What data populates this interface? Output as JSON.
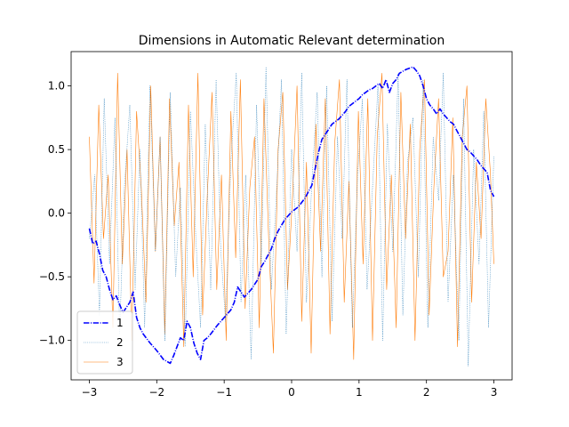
{
  "chart_data": {
    "type": "line",
    "title": "Dimensions in Automatic Relevant determination",
    "xlabel": "",
    "ylabel": "",
    "xlim": [
      -3.27,
      3.27
    ],
    "ylim": [
      -1.31,
      1.27
    ],
    "xticks": [
      -3,
      -2,
      -1,
      0,
      1,
      2,
      3
    ],
    "xtick_labels": [
      "−3",
      "−2",
      "−1",
      "0",
      "1",
      "2",
      "3"
    ],
    "yticks": [
      -1.0,
      -0.5,
      0.0,
      0.5,
      1.0
    ],
    "ytick_labels": [
      "−1.0",
      "−0.5",
      "0.0",
      "0.5",
      "1.0"
    ],
    "grid": false,
    "legend_position": "lower-left",
    "series": [
      {
        "name": "1",
        "color": "#0000ff",
        "style": "dashdot",
        "x": [
          -3.0,
          -2.95,
          -2.9,
          -2.85,
          -2.8,
          -2.75,
          -2.7,
          -2.65,
          -2.6,
          -2.55,
          -2.5,
          -2.45,
          -2.4,
          -2.35,
          -2.3,
          -2.25,
          -2.2,
          -2.1,
          -2.0,
          -1.9,
          -1.8,
          -1.75,
          -1.7,
          -1.65,
          -1.6,
          -1.55,
          -1.5,
          -1.45,
          -1.4,
          -1.35,
          -1.3,
          -1.25,
          -1.2,
          -1.1,
          -1.0,
          -0.9,
          -0.85,
          -0.8,
          -0.75,
          -0.7,
          -0.6,
          -0.5,
          -0.45,
          -0.4,
          -0.35,
          -0.3,
          -0.25,
          -0.2,
          -0.1,
          0.0,
          0.1,
          0.2,
          0.25,
          0.3,
          0.35,
          0.4,
          0.45,
          0.5,
          0.6,
          0.7,
          0.8,
          0.85,
          0.9,
          0.95,
          1.0,
          1.05,
          1.1,
          1.15,
          1.2,
          1.25,
          1.3,
          1.35,
          1.4,
          1.45,
          1.5,
          1.55,
          1.6,
          1.7,
          1.8,
          1.85,
          1.9,
          1.95,
          2.0,
          2.05,
          2.1,
          2.15,
          2.2,
          2.25,
          2.3,
          2.35,
          2.4,
          2.45,
          2.5,
          2.55,
          2.6,
          2.65,
          2.7,
          2.75,
          2.8,
          2.85,
          2.9,
          2.95,
          3.0
        ],
        "y": [
          -0.12,
          -0.24,
          -0.22,
          -0.32,
          -0.45,
          -0.5,
          -0.6,
          -0.68,
          -0.65,
          -0.72,
          -0.78,
          -0.74,
          -0.7,
          -0.62,
          -0.82,
          -0.9,
          -0.95,
          -1.02,
          -1.08,
          -1.15,
          -1.18,
          -1.12,
          -1.05,
          -0.98,
          -1.0,
          -0.85,
          -0.9,
          -1.02,
          -1.1,
          -1.15,
          -1.0,
          -0.98,
          -0.95,
          -0.88,
          -0.82,
          -0.76,
          -0.7,
          -0.58,
          -0.62,
          -0.66,
          -0.6,
          -0.52,
          -0.42,
          -0.38,
          -0.33,
          -0.28,
          -0.2,
          -0.14,
          -0.05,
          0.01,
          0.05,
          0.12,
          0.17,
          0.22,
          0.35,
          0.48,
          0.58,
          0.62,
          0.7,
          0.74,
          0.8,
          0.84,
          0.86,
          0.88,
          0.9,
          0.93,
          0.95,
          0.97,
          0.98,
          1.0,
          1.02,
          0.98,
          1.05,
          0.95,
          1.02,
          1.05,
          1.1,
          1.13,
          1.15,
          1.12,
          1.08,
          1.0,
          0.9,
          0.85,
          0.82,
          0.78,
          0.82,
          0.78,
          0.75,
          0.72,
          0.7,
          0.65,
          0.6,
          0.55,
          0.5,
          0.48,
          0.45,
          0.42,
          0.38,
          0.35,
          0.32,
          0.18,
          0.13
        ]
      },
      {
        "name": "2",
        "color": "#1f77b4",
        "style": "dotted",
        "x": [
          -3.0,
          -2.92,
          -2.85,
          -2.78,
          -2.7,
          -2.62,
          -2.55,
          -2.48,
          -2.4,
          -2.32,
          -2.25,
          -2.18,
          -2.1,
          -2.02,
          -1.95,
          -1.88,
          -1.8,
          -1.72,
          -1.65,
          -1.58,
          -1.5,
          -1.42,
          -1.35,
          -1.28,
          -1.2,
          -1.12,
          -1.05,
          -0.98,
          -0.9,
          -0.82,
          -0.75,
          -0.68,
          -0.6,
          -0.52,
          -0.45,
          -0.38,
          -0.3,
          -0.22,
          -0.15,
          -0.08,
          0.0,
          0.08,
          0.15,
          0.22,
          0.3,
          0.38,
          0.45,
          0.52,
          0.6,
          0.68,
          0.75,
          0.82,
          0.9,
          0.98,
          1.05,
          1.12,
          1.2,
          1.28,
          1.35,
          1.42,
          1.5,
          1.58,
          1.65,
          1.72,
          1.8,
          1.88,
          1.95,
          2.02,
          2.1,
          2.18,
          2.25,
          2.32,
          2.4,
          2.48,
          2.55,
          2.62,
          2.7,
          2.78,
          2.85,
          2.92,
          3.0
        ],
        "y": [
          -0.2,
          0.3,
          -0.8,
          0.9,
          -0.4,
          0.75,
          -0.95,
          0.2,
          0.85,
          -0.6,
          0.5,
          -0.9,
          1.0,
          -0.3,
          0.6,
          -1.0,
          0.95,
          -0.5,
          0.2,
          -1.05,
          0.8,
          -0.2,
          -0.9,
          0.7,
          -0.6,
          1.05,
          -0.3,
          -0.85,
          0.4,
          1.1,
          -0.7,
          0.3,
          -1.15,
          0.85,
          -0.4,
          1.15,
          -0.6,
          0.2,
          1.05,
          -0.95,
          0.5,
          -0.3,
          1.1,
          -0.7,
          0.25,
          0.95,
          -0.5,
          1.0,
          -0.85,
          0.6,
          -0.2,
          1.05,
          -0.9,
          0.3,
          0.9,
          -0.6,
          0.2,
          1.0,
          -1.0,
          0.7,
          -0.3,
          1.1,
          -0.8,
          0.4,
          0.75,
          -0.5,
          1.05,
          -0.9,
          0.6,
          0.1,
          1.1,
          -0.7,
          0.3,
          -1.0,
          0.9,
          -1.2,
          0.5,
          -0.4,
          0.8,
          -0.9,
          0.45
        ]
      },
      {
        "name": "3",
        "color": "#ff7f0e",
        "style": "solid",
        "x": [
          -3.0,
          -2.93,
          -2.86,
          -2.79,
          -2.72,
          -2.65,
          -2.58,
          -2.51,
          -2.44,
          -2.37,
          -2.3,
          -2.23,
          -2.16,
          -2.09,
          -2.02,
          -1.95,
          -1.88,
          -1.81,
          -1.74,
          -1.67,
          -1.6,
          -1.53,
          -1.46,
          -1.39,
          -1.32,
          -1.25,
          -1.18,
          -1.11,
          -1.04,
          -0.97,
          -0.9,
          -0.83,
          -0.76,
          -0.69,
          -0.62,
          -0.55,
          -0.48,
          -0.41,
          -0.34,
          -0.27,
          -0.2,
          -0.13,
          -0.06,
          0.01,
          0.08,
          0.15,
          0.22,
          0.29,
          0.36,
          0.43,
          0.5,
          0.57,
          0.64,
          0.71,
          0.78,
          0.85,
          0.92,
          0.99,
          1.06,
          1.13,
          1.2,
          1.27,
          1.34,
          1.41,
          1.48,
          1.55,
          1.62,
          1.69,
          1.76,
          1.83,
          1.9,
          1.97,
          2.04,
          2.11,
          2.18,
          2.25,
          2.32,
          2.39,
          2.46,
          2.53,
          2.6,
          2.67,
          2.74,
          2.81,
          2.88,
          2.95,
          3.0
        ],
        "y": [
          0.6,
          -0.55,
          0.85,
          -0.2,
          0.3,
          -0.9,
          1.1,
          -0.4,
          0.5,
          -1.0,
          0.8,
          0.2,
          -0.7,
          1.0,
          -0.3,
          0.6,
          -0.95,
          0.9,
          -0.1,
          0.4,
          -1.05,
          0.85,
          -0.5,
          1.1,
          -0.8,
          0.15,
          0.95,
          -0.6,
          0.3,
          -1.0,
          0.8,
          -0.35,
          1.05,
          -0.75,
          0.2,
          0.6,
          -0.9,
          0.9,
          -0.2,
          -1.1,
          0.5,
          0.95,
          -0.6,
          0.1,
          1.0,
          -0.85,
          0.4,
          -1.1,
          0.7,
          -0.3,
          0.9,
          -0.95,
          0.55,
          1.05,
          -0.7,
          0.25,
          -1.15,
          0.8,
          -0.4,
          0.9,
          -1.0,
          0.6,
          1.1,
          -0.6,
          0.3,
          -0.9,
          0.95,
          -0.2,
          0.7,
          -1.0,
          0.5,
          1.05,
          -0.8,
          0.2,
          0.9,
          -0.5,
          -0.3,
          0.75,
          -1.05,
          0.6,
          1.0,
          -0.7,
          0.4,
          -0.2,
          0.9,
          0.3,
          -0.4
        ]
      }
    ]
  }
}
